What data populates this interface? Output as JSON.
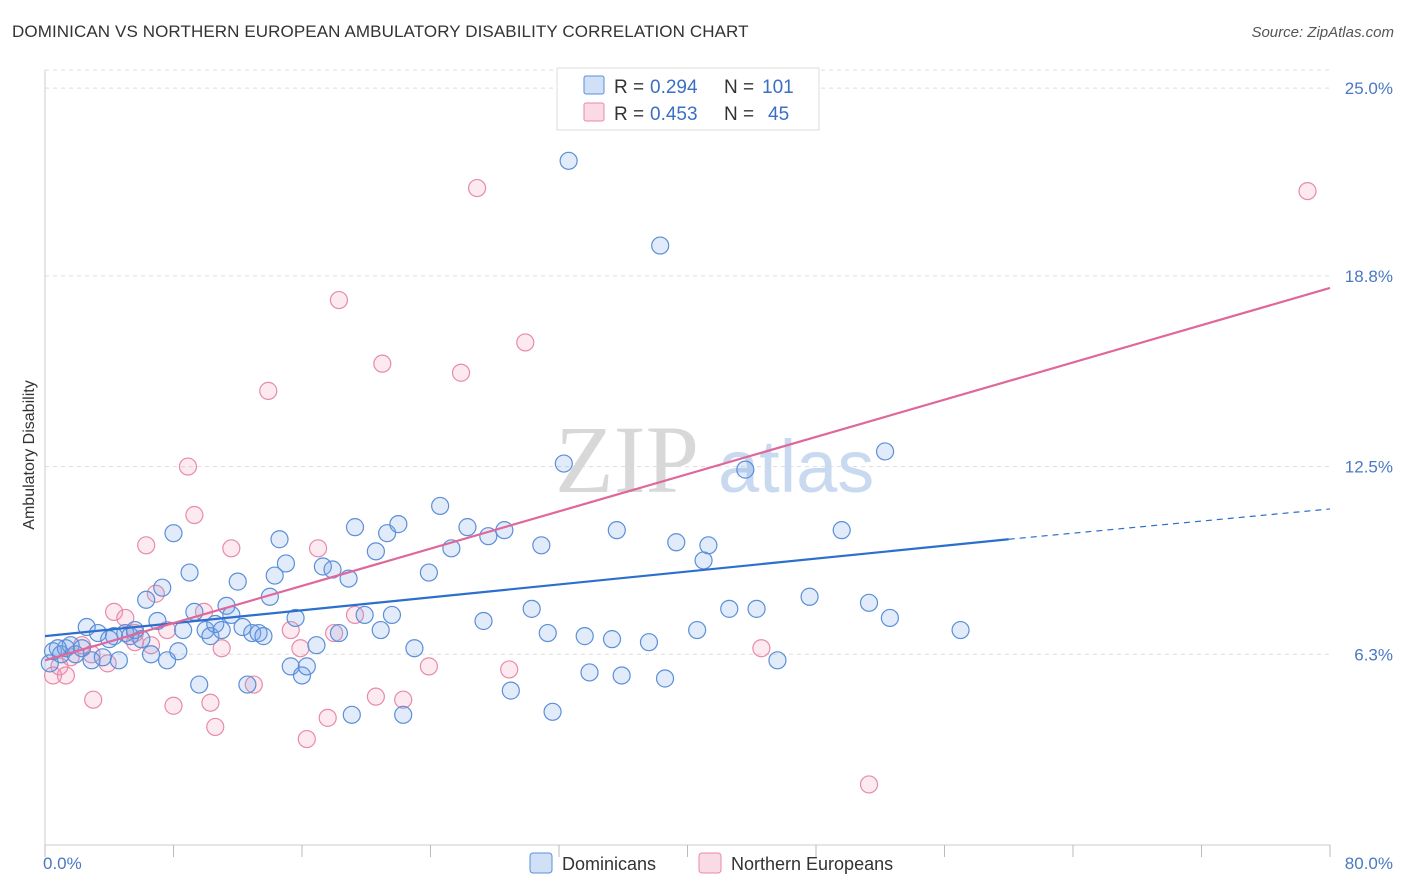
{
  "title": "DOMINICAN VS NORTHERN EUROPEAN AMBULATORY DISABILITY CORRELATION CHART",
  "source": "Source: ZipAtlas.com",
  "watermark": {
    "zip": "ZIP",
    "atlas": "atlas"
  },
  "colors": {
    "blue_fill": "rgba(120,165,230,0.22)",
    "blue_stroke": "#5b8fd8",
    "blue_line": "#2d6fcc",
    "pink_fill": "rgba(240,150,180,0.20)",
    "pink_stroke": "#e88aab",
    "pink_line": "#e0679a",
    "grid": "#dddddd",
    "tick_label": "#4a78c2"
  },
  "legend": {
    "rows": [
      {
        "r_label": "R =",
        "r_value": "0.294",
        "n_label": "N =",
        "n_value": "101"
      },
      {
        "r_label": "R =",
        "r_value": "0.453",
        "n_label": "N =",
        "n_value": "45"
      }
    ]
  },
  "chart_data": {
    "type": "scatter",
    "xlabel": "",
    "ylabel": "Ambulatory Disability",
    "xlim": [
      0,
      80
    ],
    "ylim": [
      0,
      25.6
    ],
    "x_tick_labels": [
      {
        "value": 0,
        "label": "0.0%"
      },
      {
        "value": 80,
        "label": "80.0%"
      }
    ],
    "y_tick_labels": [
      {
        "value": 6.3,
        "label": "6.3%"
      },
      {
        "value": 12.5,
        "label": "12.5%"
      },
      {
        "value": 18.8,
        "label": "18.8%"
      },
      {
        "value": 25.0,
        "label": "25.0%"
      }
    ],
    "legend_position": "top-center",
    "series": [
      {
        "name": "Dominicans",
        "trend": {
          "x0": 0,
          "y0": 6.9,
          "x1": 60,
          "y1": 10.1,
          "dash_x1": 80,
          "dash_y1": 11.1
        },
        "points": [
          [
            0.3,
            6.0
          ],
          [
            0.5,
            6.4
          ],
          [
            1.0,
            6.3
          ],
          [
            1.3,
            6.5
          ],
          [
            1.6,
            6.6
          ],
          [
            1.9,
            6.3
          ],
          [
            2.3,
            6.5
          ],
          [
            2.6,
            7.2
          ],
          [
            2.9,
            6.1
          ],
          [
            3.3,
            7.0
          ],
          [
            3.6,
            6.2
          ],
          [
            4.0,
            6.8
          ],
          [
            4.3,
            6.9
          ],
          [
            4.6,
            6.1
          ],
          [
            5.0,
            7.0
          ],
          [
            5.3,
            6.9
          ],
          [
            5.6,
            7.1
          ],
          [
            6.0,
            6.8
          ],
          [
            6.3,
            8.1
          ],
          [
            6.6,
            6.3
          ],
          [
            7.0,
            7.4
          ],
          [
            7.3,
            8.5
          ],
          [
            7.6,
            6.1
          ],
          [
            8.0,
            10.3
          ],
          [
            8.3,
            6.4
          ],
          [
            8.6,
            7.1
          ],
          [
            9.0,
            9.0
          ],
          [
            9.3,
            7.7
          ],
          [
            9.6,
            5.3
          ],
          [
            10.0,
            7.1
          ],
          [
            10.3,
            6.9
          ],
          [
            10.6,
            7.3
          ],
          [
            11.0,
            7.1
          ],
          [
            11.3,
            7.9
          ],
          [
            11.6,
            7.6
          ],
          [
            12.0,
            8.7
          ],
          [
            12.3,
            7.2
          ],
          [
            12.6,
            5.3
          ],
          [
            12.9,
            7.0
          ],
          [
            13.3,
            7.0
          ],
          [
            13.6,
            6.9
          ],
          [
            14.0,
            8.2
          ],
          [
            14.3,
            8.9
          ],
          [
            14.6,
            10.1
          ],
          [
            15.0,
            9.3
          ],
          [
            15.3,
            5.9
          ],
          [
            15.6,
            7.5
          ],
          [
            16.0,
            5.6
          ],
          [
            16.3,
            5.9
          ],
          [
            16.9,
            6.6
          ],
          [
            17.3,
            9.2
          ],
          [
            17.9,
            9.1
          ],
          [
            18.3,
            7.0
          ],
          [
            18.9,
            8.8
          ],
          [
            19.1,
            4.3
          ],
          [
            19.3,
            10.5
          ],
          [
            19.9,
            7.6
          ],
          [
            20.6,
            9.7
          ],
          [
            20.9,
            7.1
          ],
          [
            21.3,
            10.3
          ],
          [
            21.6,
            7.6
          ],
          [
            22.0,
            10.6
          ],
          [
            22.3,
            4.3
          ],
          [
            23.0,
            6.5
          ],
          [
            23.9,
            9.0
          ],
          [
            24.6,
            11.2
          ],
          [
            25.3,
            9.8
          ],
          [
            26.3,
            10.5
          ],
          [
            27.3,
            7.4
          ],
          [
            27.6,
            10.2
          ],
          [
            28.6,
            10.4
          ],
          [
            29.0,
            5.1
          ],
          [
            30.3,
            7.8
          ],
          [
            30.9,
            9.9
          ],
          [
            31.3,
            7.0
          ],
          [
            31.6,
            4.4
          ],
          [
            32.3,
            12.6
          ],
          [
            32.6,
            22.6
          ],
          [
            33.6,
            6.9
          ],
          [
            33.9,
            5.7
          ],
          [
            35.3,
            6.8
          ],
          [
            35.6,
            10.4
          ],
          [
            35.9,
            5.6
          ],
          [
            37.6,
            6.7
          ],
          [
            38.3,
            19.8
          ],
          [
            38.6,
            5.5
          ],
          [
            39.3,
            10.0
          ],
          [
            40.6,
            7.1
          ],
          [
            41.0,
            9.4
          ],
          [
            41.3,
            9.9
          ],
          [
            42.6,
            7.8
          ],
          [
            43.6,
            12.4
          ],
          [
            44.3,
            7.8
          ],
          [
            45.6,
            6.1
          ],
          [
            47.6,
            8.2
          ],
          [
            49.6,
            10.4
          ],
          [
            51.3,
            8.0
          ],
          [
            52.3,
            13.0
          ],
          [
            52.6,
            7.5
          ],
          [
            57.0,
            7.1
          ],
          [
            0.8,
            6.5
          ]
        ]
      },
      {
        "name": "Northern Europeans",
        "trend": {
          "x0": 0,
          "y0": 6.1,
          "x1": 80,
          "y1": 18.4
        },
        "points": [
          [
            0.5,
            5.6
          ],
          [
            1.3,
            5.6
          ],
          [
            1.6,
            6.2
          ],
          [
            2.3,
            6.6
          ],
          [
            3.0,
            4.8
          ],
          [
            3.9,
            6.0
          ],
          [
            4.3,
            7.7
          ],
          [
            5.0,
            7.5
          ],
          [
            5.6,
            7.0
          ],
          [
            6.3,
            9.9
          ],
          [
            6.6,
            6.6
          ],
          [
            6.9,
            8.3
          ],
          [
            7.6,
            7.1
          ],
          [
            8.0,
            4.6
          ],
          [
            8.9,
            12.5
          ],
          [
            9.3,
            10.9
          ],
          [
            9.9,
            7.7
          ],
          [
            10.3,
            4.7
          ],
          [
            10.6,
            3.9
          ],
          [
            11.0,
            6.5
          ],
          [
            11.6,
            9.8
          ],
          [
            13.0,
            5.3
          ],
          [
            13.9,
            15.0
          ],
          [
            15.3,
            7.1
          ],
          [
            15.9,
            6.5
          ],
          [
            16.3,
            3.5
          ],
          [
            17.0,
            9.8
          ],
          [
            17.6,
            4.2
          ],
          [
            18.0,
            7.0
          ],
          [
            18.3,
            18.0
          ],
          [
            19.3,
            7.6
          ],
          [
            20.6,
            4.9
          ],
          [
            21.0,
            15.9
          ],
          [
            22.3,
            4.8
          ],
          [
            23.9,
            5.9
          ],
          [
            25.9,
            15.6
          ],
          [
            26.9,
            21.7
          ],
          [
            28.9,
            5.8
          ],
          [
            29.9,
            16.6
          ],
          [
            44.6,
            6.5
          ],
          [
            51.3,
            2.0
          ],
          [
            78.6,
            21.6
          ],
          [
            0.9,
            5.9
          ],
          [
            2.9,
            6.3
          ],
          [
            5.6,
            6.7
          ]
        ]
      }
    ]
  }
}
